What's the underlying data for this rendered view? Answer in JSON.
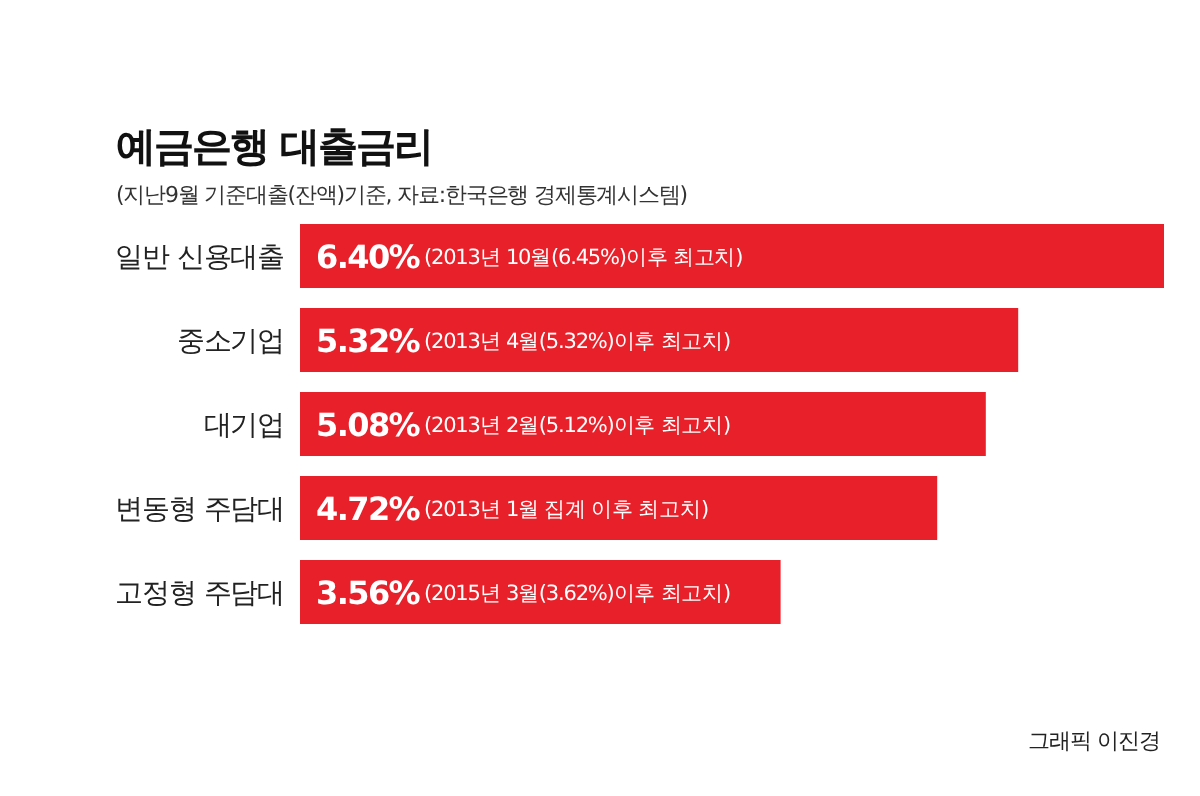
{
  "chart_data": {
    "type": "bar",
    "orientation": "horizontal",
    "title": "예금은행 대출금리",
    "subtitle": "(지난9월 기준대출(잔액)기준, 자료:한국은행 경제통계시스템)",
    "categories": [
      "일반 신용대출",
      "중소기업",
      "대기업",
      "변동형 주담대",
      "고정형 주담대"
    ],
    "values": [
      6.4,
      5.32,
      5.08,
      4.72,
      3.56
    ],
    "color": "#e8202a",
    "value_labels": [
      "6.40%",
      "5.32%",
      "5.08%",
      "4.72%",
      "3.56%"
    ],
    "annotations": [
      "(2013년 10월(6.45%)이후 최고치)",
      "(2013년 4월(5.32%)이후 최고치)",
      "(2013년 2월(5.12%)이후 최고치)",
      "(2013년 1월 집계 이후 최고치)",
      "(2015년 3월(3.62%)이후 최고치)",
      "그래픽 이진경"
    ]
  }
}
